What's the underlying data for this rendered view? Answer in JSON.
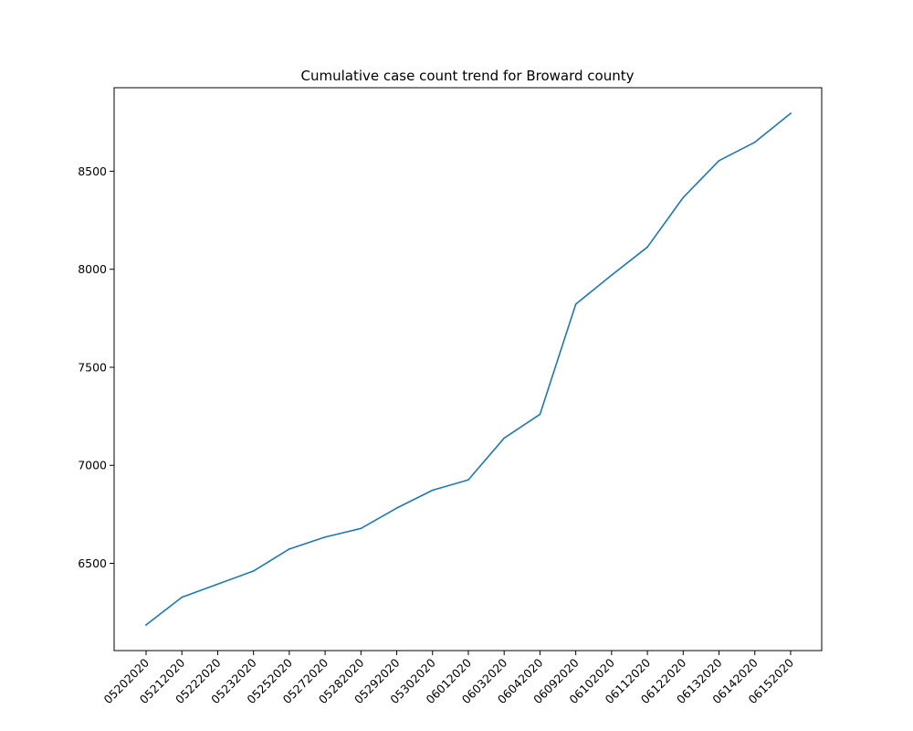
{
  "chart_data": {
    "type": "line",
    "title": "Cumulative case count trend for Broward county",
    "xlabel": "",
    "ylabel": "",
    "categories": [
      "05202020",
      "05212020",
      "05222020",
      "05232020",
      "05252020",
      "05272020",
      "05282020",
      "05292020",
      "05302020",
      "06012020",
      "06032020",
      "06042020",
      "06092020",
      "06102020",
      "06112020",
      "06122020",
      "06132020",
      "06142020",
      "06152020"
    ],
    "series": [
      {
        "values": [
          6186,
          6327,
          6394,
          6461,
          6573,
          6634,
          6678,
          6782,
          6873,
          6926,
          7139,
          7260,
          7822,
          7970,
          8113,
          8366,
          8554,
          8648,
          8795
        ],
        "color": "#1f77b4"
      }
    ],
    "yticks": [
      6500,
      7000,
      7500,
      8000,
      8500
    ],
    "ylim": [
      6055,
      8926
    ],
    "grid": false,
    "legend": "none"
  }
}
